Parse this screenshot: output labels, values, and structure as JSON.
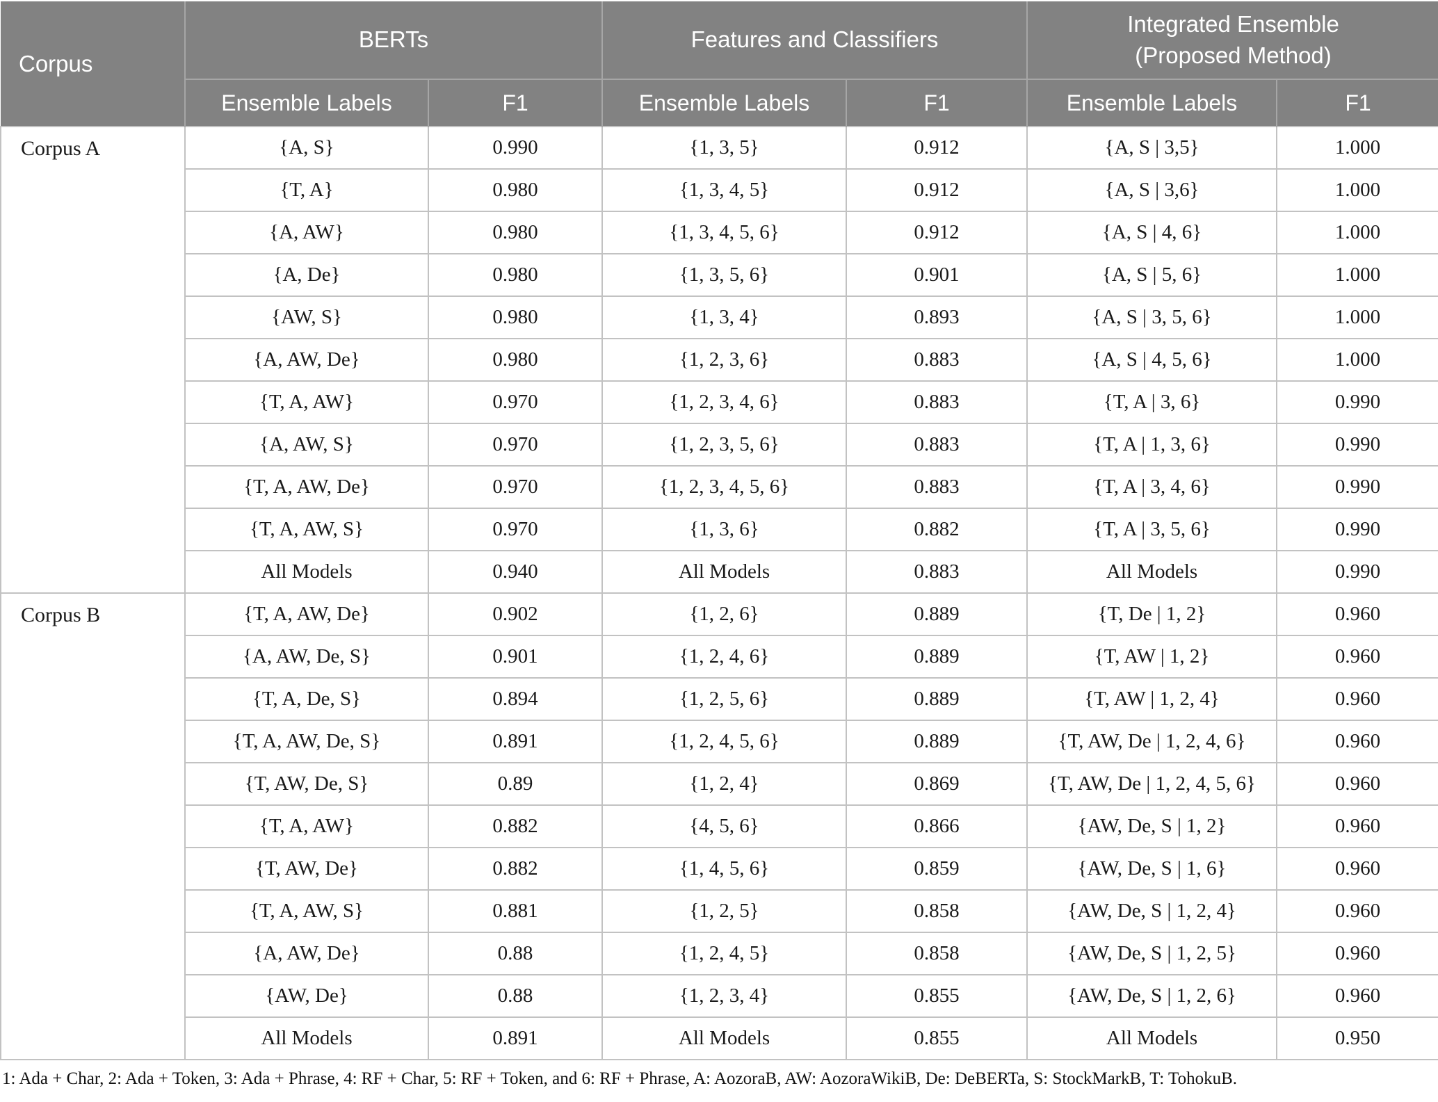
{
  "header": {
    "corpus": "Corpus",
    "groups": [
      {
        "title": "BERTs"
      },
      {
        "title": "Features and Classifiers"
      },
      {
        "title": "Integrated Ensemble\n(Proposed Method)"
      }
    ],
    "ensemble_labels": "Ensemble Labels",
    "f1": "F1"
  },
  "sections": [
    {
      "corpus": "Corpus A",
      "rows": [
        [
          "{A, S}",
          "0.990",
          "{1, 3, 5}",
          "0.912",
          "{A, S | 3,5}",
          "1.000"
        ],
        [
          "{T, A}",
          "0.980",
          "{1, 3, 4, 5}",
          "0.912",
          "{A, S | 3,6}",
          "1.000"
        ],
        [
          "{A, AW}",
          "0.980",
          "{1, 3, 4, 5, 6}",
          "0.912",
          "{A, S | 4, 6}",
          "1.000"
        ],
        [
          "{A, De}",
          "0.980",
          "{1, 3, 5, 6}",
          "0.901",
          "{A, S | 5, 6}",
          "1.000"
        ],
        [
          "{AW, S}",
          "0.980",
          "{1, 3, 4}",
          "0.893",
          "{A, S | 3, 5, 6}",
          "1.000"
        ],
        [
          "{A, AW, De}",
          "0.980",
          "{1, 2, 3, 6}",
          "0.883",
          "{A, S | 4, 5, 6}",
          "1.000"
        ],
        [
          "{T, A, AW}",
          "0.970",
          "{1, 2, 3, 4, 6}",
          "0.883",
          "{T, A | 3, 6}",
          "0.990"
        ],
        [
          "{A, AW, S}",
          "0.970",
          "{1, 2, 3, 5, 6}",
          "0.883",
          "{T, A | 1, 3, 6}",
          "0.990"
        ],
        [
          "{T, A, AW, De}",
          "0.970",
          "{1, 2, 3, 4, 5, 6}",
          "0.883",
          "{T, A | 3, 4, 6}",
          "0.990"
        ],
        [
          "{T, A, AW, S}",
          "0.970",
          "{1, 3, 6}",
          "0.882",
          "{T, A | 3, 5, 6}",
          "0.990"
        ],
        [
          "All Models",
          "0.940",
          "All Models",
          "0.883",
          "All Models",
          "0.990"
        ]
      ]
    },
    {
      "corpus": "Corpus B",
      "rows": [
        [
          "{T, A, AW, De}",
          "0.902",
          "{1, 2, 6}",
          "0.889",
          "{T, De | 1, 2}",
          "0.960"
        ],
        [
          "{A, AW, De, S}",
          "0.901",
          "{1, 2, 4, 6}",
          "0.889",
          "{T, AW | 1, 2}",
          "0.960"
        ],
        [
          "{T, A, De, S}",
          "0.894",
          "{1, 2, 5, 6}",
          "0.889",
          "{T, AW | 1, 2, 4}",
          "0.960"
        ],
        [
          "{T, A, AW, De, S}",
          "0.891",
          "{1, 2, 4, 5, 6}",
          "0.889",
          "{T, AW, De | 1, 2, 4, 6}",
          "0.960"
        ],
        [
          "{T, AW, De, S}",
          "0.89",
          "{1, 2, 4}",
          "0.869",
          "{T, AW, De | 1, 2, 4, 5, 6}",
          "0.960"
        ],
        [
          "{T, A, AW}",
          "0.882",
          "{4, 5, 6}",
          "0.866",
          "{AW, De, S | 1, 2}",
          "0.960"
        ],
        [
          "{T, AW, De}",
          "0.882",
          "{1, 4, 5, 6}",
          "0.859",
          "{AW, De, S | 1, 6}",
          "0.960"
        ],
        [
          "{T, A, AW, S}",
          "0.881",
          "{1, 2, 5}",
          "0.858",
          "{AW, De, S | 1, 2, 4}",
          "0.960"
        ],
        [
          "{A, AW, De}",
          "0.88",
          "{1, 2, 4, 5}",
          "0.858",
          "{AW, De, S | 1, 2, 5}",
          "0.960"
        ],
        [
          "{AW, De}",
          "0.88",
          "{1, 2, 3, 4}",
          "0.855",
          "{AW, De, S | 1, 2, 6}",
          "0.960"
        ],
        [
          "All Models",
          "0.891",
          "All Models",
          "0.855",
          "All Models",
          "0.950"
        ]
      ]
    }
  ],
  "footnote": "1: Ada + Char, 2: Ada + Token, 3: Ada + Phrase, 4: RF + Char, 5: RF + Token, and 6: RF + Phrase, A: AozoraB, AW: AozoraWikiB, De: DeBERTa, S: StockMarkB, T: TohokuB."
}
